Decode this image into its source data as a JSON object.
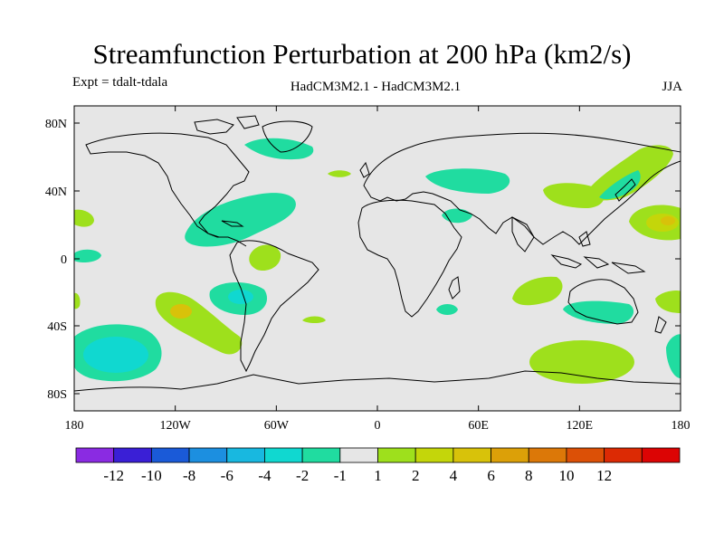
{
  "title": "Streamfunction Perturbation at 200 hPa (km2/s)",
  "experiment": "Expt = tdalt-tdala",
  "model": "HadCM3M2.1 - HadCM3M2.1",
  "season": "JJA",
  "axes": {
    "x_ticks": [
      "180",
      "120W",
      "60W",
      "0",
      "60E",
      "120E",
      "180"
    ],
    "y_ticks": [
      "80N",
      "40N",
      "0",
      "40S",
      "80S"
    ]
  },
  "colorbar": {
    "colors": [
      "#8a2be2",
      "#3a1fd6",
      "#1a5ad8",
      "#1c8fe0",
      "#18b8e0",
      "#10d8d0",
      "#20dca0",
      "#e6e6e6",
      "#9ee01c",
      "#c4d60a",
      "#d8c20a",
      "#dca008",
      "#dc7808",
      "#dc5006",
      "#dc2a04",
      "#dc0404"
    ],
    "labels": [
      "-12",
      "-10",
      "-8",
      "-6",
      "-4",
      "-2",
      "-1",
      "1",
      "2",
      "4",
      "6",
      "8",
      "10",
      "12"
    ]
  },
  "colors": {
    "background": "#e6e6e6",
    "cyan": "#10d8d0",
    "teal": "#20dca0",
    "lime": "#9ee01c",
    "yellow": "#c4d60a",
    "orange": "#d8c20a",
    "coast": "#000000"
  }
}
